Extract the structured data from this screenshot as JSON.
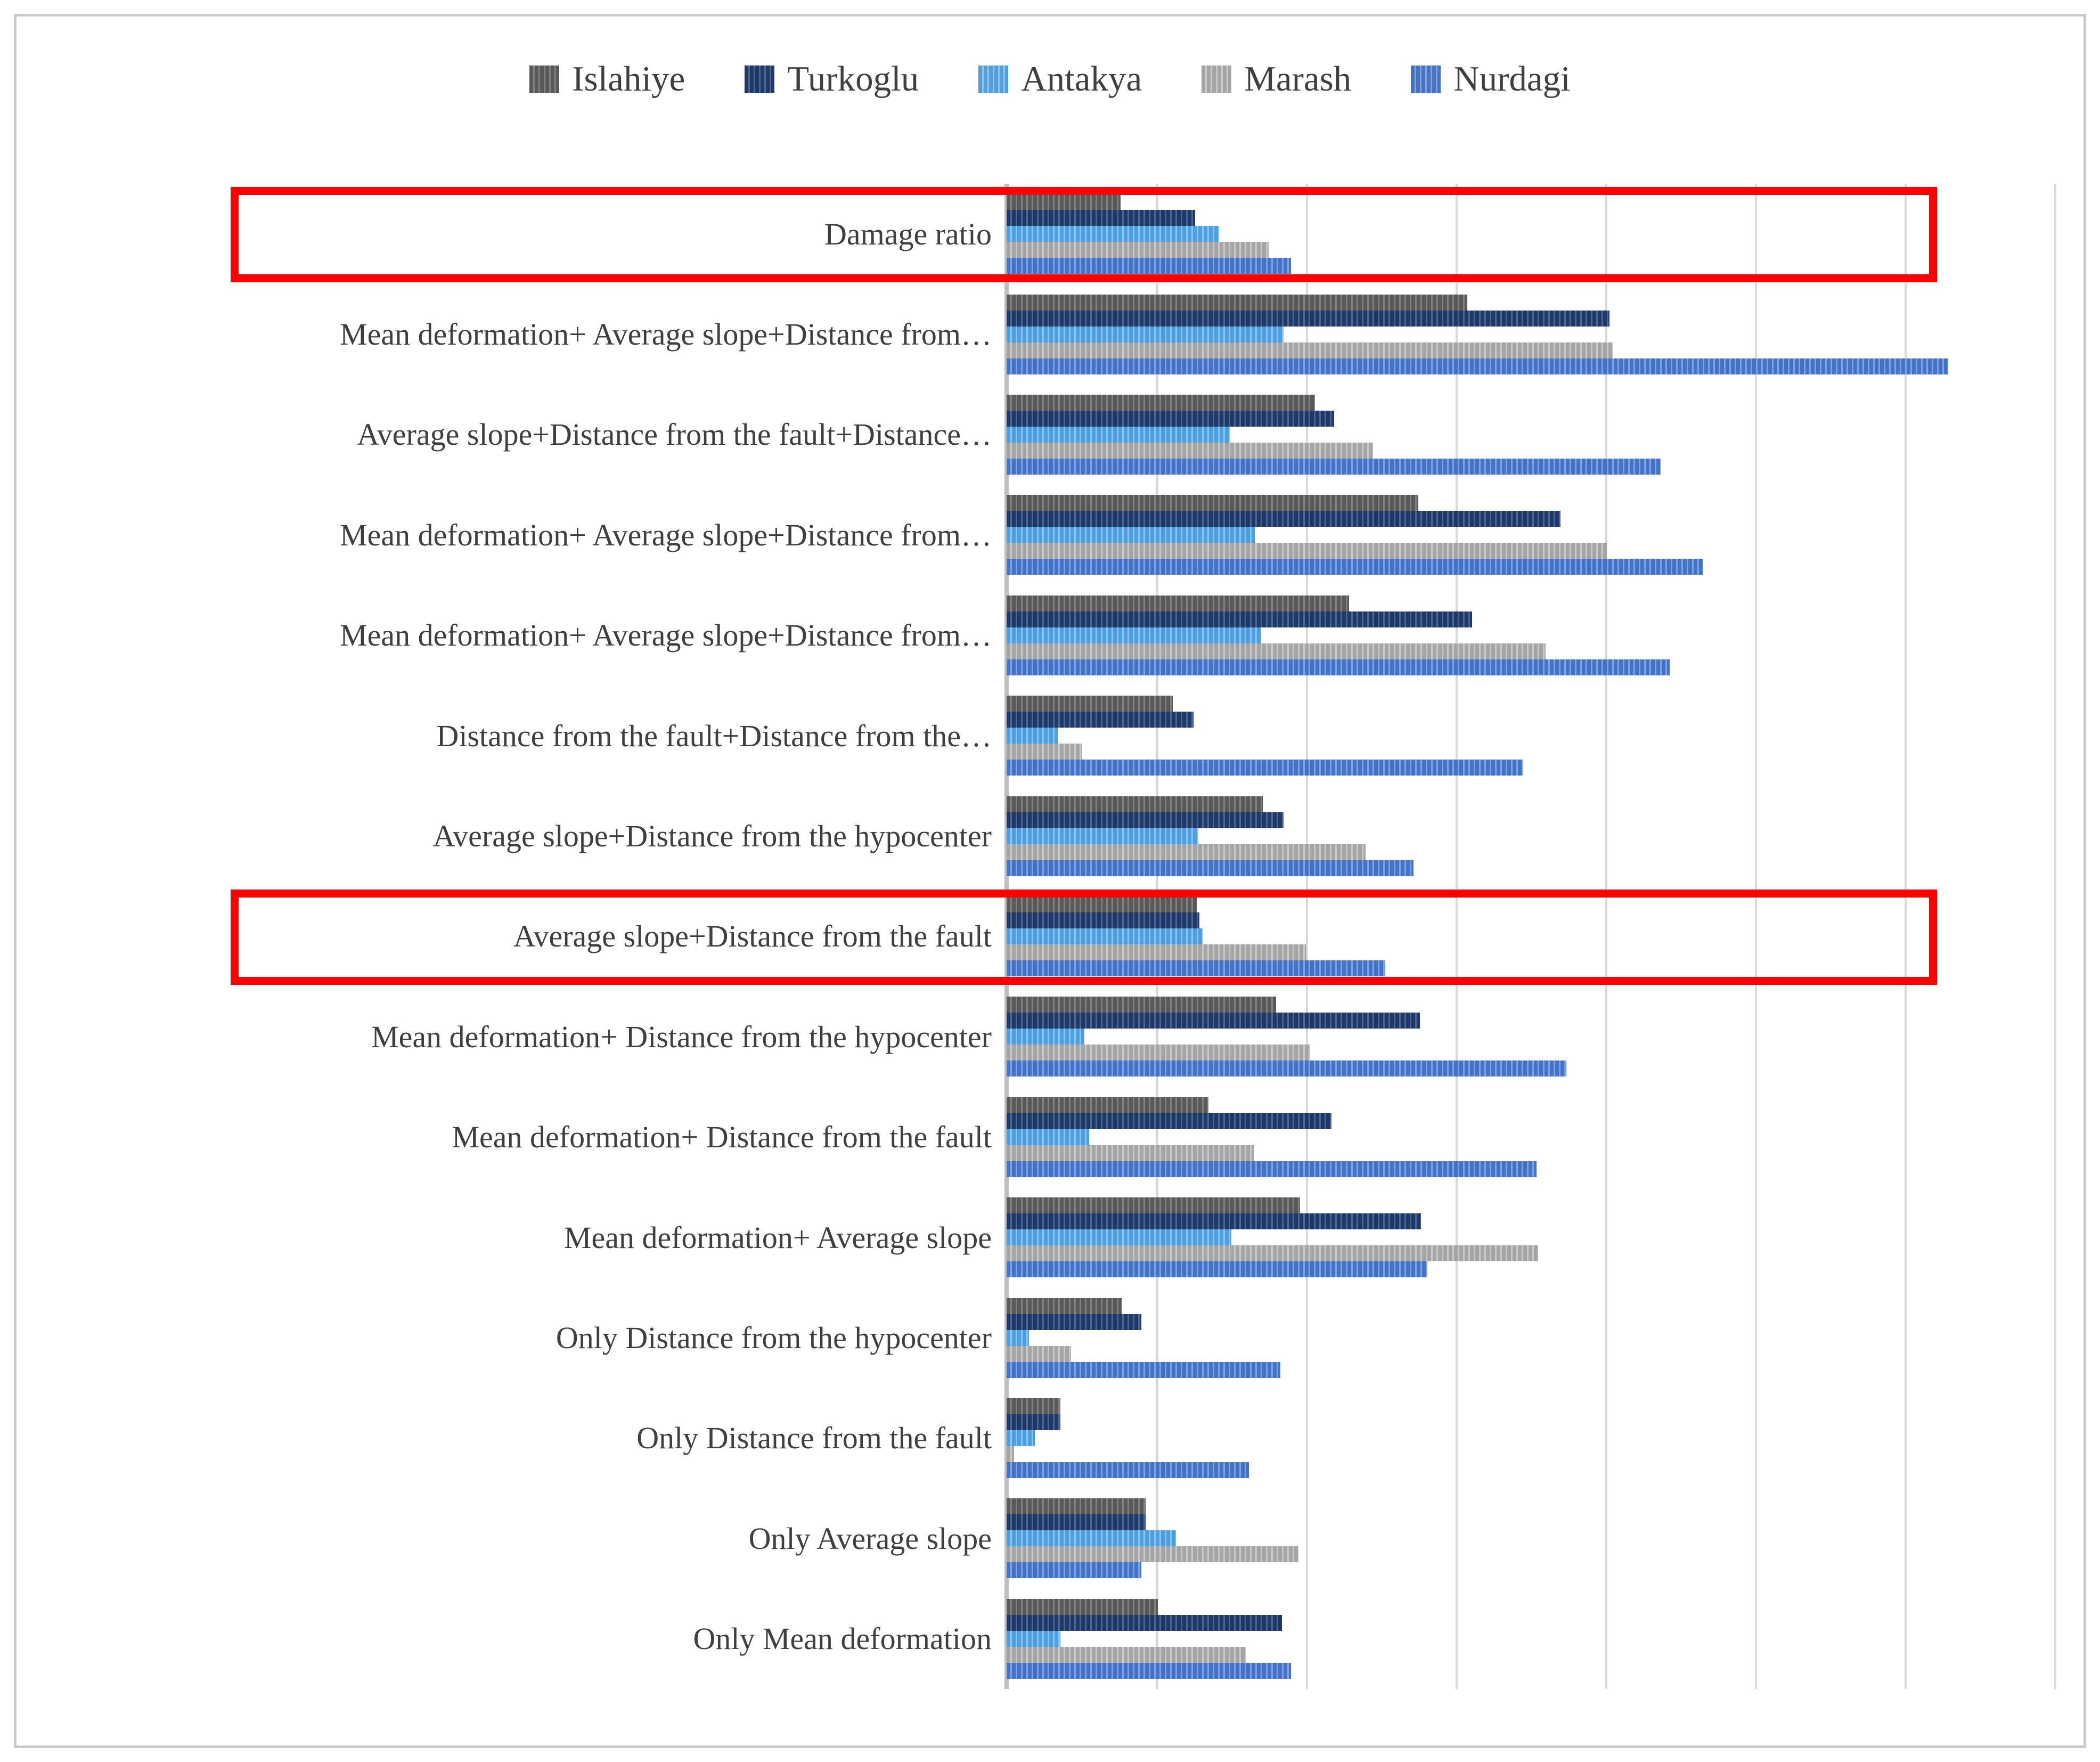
{
  "figure": {
    "background": "#ffffff",
    "border_color": "#c9c9c9",
    "text_color": "#3f3f3f",
    "gridline_color": "#d9d9d9",
    "axis_line_color": "#bfbfbf",
    "highlight_color": "#fe0000",
    "bar_fill_style": "vertical-stripe pattern"
  },
  "legend": {
    "position": "top-center",
    "items": [
      {
        "label": "Islahiye",
        "color": "#595959",
        "stripe": "#818181"
      },
      {
        "label": "Turkoglu",
        "color": "#1f3864",
        "stripe": "#47659e"
      },
      {
        "label": "Antakya",
        "color": "#4d9fe0",
        "stripe": "#8fc3ee"
      },
      {
        "label": "Marash",
        "color": "#a5a5a5",
        "stripe": "#c9c9c9"
      },
      {
        "label": "Nurdagi",
        "color": "#4472c4",
        "stripe": "#7fa1dc"
      }
    ]
  },
  "chart_data": {
    "type": "bar",
    "orientation": "horizontal",
    "title": "",
    "xlabel": "",
    "ylabel": "",
    "legend_position": "top",
    "grid": true,
    "axis": {
      "xlim": [
        0,
        7
      ],
      "gridline_spacing": 1,
      "tick_labels_visible": false,
      "note": "x-axis has no numeric tick labels; values estimated in gridline-division units"
    },
    "categories": [
      "Damage ratio",
      "Mean deformation+ Average slope+Distance from…",
      "Average slope+Distance from the fault+Distance…",
      "Mean deformation+ Average slope+Distance from…",
      "Mean deformation+ Average slope+Distance from…",
      "Distance from the fault+Distance from the…",
      "Average slope+Distance from the hypocenter",
      "Average slope+Distance from the fault",
      "Mean deformation+ Distance from the hypocenter",
      "Mean deformation+ Distance from the fault",
      "Mean deformation+ Average slope",
      "Only Distance from the hypocenter",
      "Only Distance from the fault",
      "Only Average slope",
      "Only Mean deformation"
    ],
    "series": [
      {
        "name": "Islahiye",
        "values": [
          0.76,
          3.08,
          2.06,
          2.75,
          2.29,
          1.11,
          1.71,
          1.27,
          1.8,
          1.35,
          1.96,
          0.77,
          0.36,
          0.93,
          1.01
        ]
      },
      {
        "name": "Turkoglu",
        "values": [
          1.26,
          4.03,
          2.19,
          3.7,
          3.11,
          1.25,
          1.85,
          1.29,
          2.76,
          2.17,
          2.77,
          0.9,
          0.36,
          0.93,
          1.84
        ]
      },
      {
        "name": "Antakya",
        "values": [
          1.42,
          1.85,
          1.49,
          1.66,
          1.7,
          0.34,
          1.28,
          1.31,
          0.52,
          0.55,
          1.5,
          0.15,
          0.19,
          1.13,
          0.36
        ]
      },
      {
        "name": "Marash",
        "values": [
          1.75,
          4.05,
          2.45,
          4.01,
          3.6,
          0.5,
          2.4,
          2.0,
          2.03,
          1.65,
          3.55,
          0.43,
          0.05,
          1.95,
          1.6
        ]
      },
      {
        "name": "Nurdagi",
        "values": [
          1.9,
          6.29,
          4.37,
          4.65,
          4.43,
          3.45,
          2.72,
          2.53,
          3.74,
          3.54,
          2.81,
          1.83,
          1.62,
          0.9,
          1.9
        ]
      }
    ],
    "highlighted_category_indexes": [
      0,
      7
    ],
    "annotations": [
      {
        "type": "red-box",
        "category": "Damage ratio"
      },
      {
        "type": "red-box",
        "category": "Average slope+Distance from the fault"
      }
    ]
  }
}
